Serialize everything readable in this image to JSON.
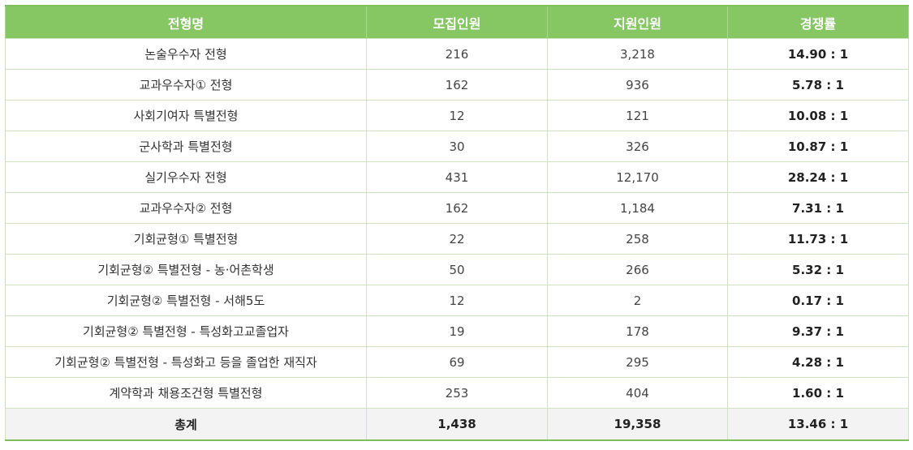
{
  "table": {
    "headers": [
      "전형명",
      "모집인원",
      "지원인원",
      "경쟁률"
    ],
    "rows": [
      {
        "name": "논술우수자 전형",
        "recruit": "216",
        "applicants": "3,218",
        "rate": "14.90 : 1"
      },
      {
        "name": "교과우수자① 전형",
        "recruit": "162",
        "applicants": "936",
        "rate": "5.78 : 1"
      },
      {
        "name": "사회기여자 특별전형",
        "recruit": "12",
        "applicants": "121",
        "rate": "10.08 : 1"
      },
      {
        "name": "군사학과 특별전형",
        "recruit": "30",
        "applicants": "326",
        "rate": "10.87 : 1"
      },
      {
        "name": "실기우수자 전형",
        "recruit": "431",
        "applicants": "12,170",
        "rate": "28.24 : 1"
      },
      {
        "name": "교과우수자② 전형",
        "recruit": "162",
        "applicants": "1,184",
        "rate": "7.31 : 1"
      },
      {
        "name": "기회균형① 특별전형",
        "recruit": "22",
        "applicants": "258",
        "rate": "11.73 : 1"
      },
      {
        "name": "기회균형② 특별전형 - 농·어촌학생",
        "recruit": "50",
        "applicants": "266",
        "rate": "5.32 : 1"
      },
      {
        "name": "기회균형② 특별전형 - 서해5도",
        "recruit": "12",
        "applicants": "2",
        "rate": "0.17 : 1"
      },
      {
        "name": "기회균형② 특별전형 - 특성화고교졸업자",
        "recruit": "19",
        "applicants": "178",
        "rate": "9.37 : 1"
      },
      {
        "name": "기회균형② 특별전형 - 특성화고 등을 졸업한 재직자",
        "recruit": "69",
        "applicants": "295",
        "rate": "4.28 : 1"
      },
      {
        "name": "계약학과 채용조건형 특별전형",
        "recruit": "253",
        "applicants": "404",
        "rate": "1.60 : 1"
      }
    ],
    "total": {
      "name": "총계",
      "recruit": "1,438",
      "applicants": "19,358",
      "rate": "13.46 : 1"
    }
  },
  "colors": {
    "header_bg": "#86c764",
    "border": "#cfe3c3",
    "accent_line": "#7cbf5c",
    "total_bg": "#f3f3f3"
  }
}
